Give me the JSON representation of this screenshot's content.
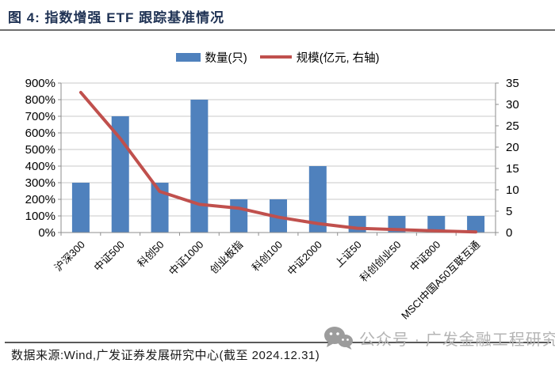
{
  "header": {
    "title": "图 4:  指数增强 ETF 跟踪基准情况"
  },
  "legend": {
    "items": [
      {
        "label": "数量(只)",
        "color": "#4F81BD",
        "swatch": "bar"
      },
      {
        "label": "规模(亿元, 右轴)",
        "color": "#C0504D",
        "swatch": "line"
      }
    ]
  },
  "chart_data": {
    "type": "bar",
    "title": "指数增强 ETF 跟踪基准情况",
    "categories": [
      "沪深300",
      "中证500",
      "科创50",
      "中证1000",
      "创业板指",
      "科创100",
      "中证2000",
      "上证50",
      "科创创业50",
      "中证800",
      "MSCI中国A50互联互通"
    ],
    "series": [
      {
        "name": "数量(只)",
        "type": "bar",
        "axis": "left",
        "color": "#4F81BD",
        "unit": "%",
        "values": [
          300,
          700,
          300,
          800,
          200,
          200,
          400,
          100,
          100,
          100,
          100
        ]
      },
      {
        "name": "规模(亿元, 右轴)",
        "type": "line",
        "axis": "right",
        "color": "#C0504D",
        "values": [
          32.8,
          22,
          9.6,
          6.6,
          5.7,
          3.6,
          2.1,
          1.0,
          0.7,
          0.4,
          0.15
        ]
      }
    ],
    "left_axis": {
      "min": 0,
      "max": 900,
      "step": 100,
      "format": "percent",
      "tick_labels": [
        "0%",
        "100%",
        "200%",
        "300%",
        "400%",
        "500%",
        "600%",
        "700%",
        "800%",
        "900%"
      ]
    },
    "right_axis": {
      "min": 0,
      "max": 35,
      "step": 5,
      "tick_labels": [
        "0",
        "5",
        "10",
        "15",
        "20",
        "25",
        "30",
        "35"
      ]
    },
    "grid": true,
    "legend_position": "top",
    "xlabel": "",
    "ylabel": ""
  },
  "footer": {
    "source": "数据来源:Wind,广发证券发展研究中心(截至 2024.12.31)"
  },
  "watermark": {
    "icon": "wechat-icon",
    "text": "公众号 · 广发金融工程研究"
  },
  "colors": {
    "bar": "#4F81BD",
    "line": "#C0504D",
    "title": "#1F3254",
    "grid": "#C9C9C9",
    "axis": "#8E8E8E",
    "watermark": "#B4B4B4"
  }
}
